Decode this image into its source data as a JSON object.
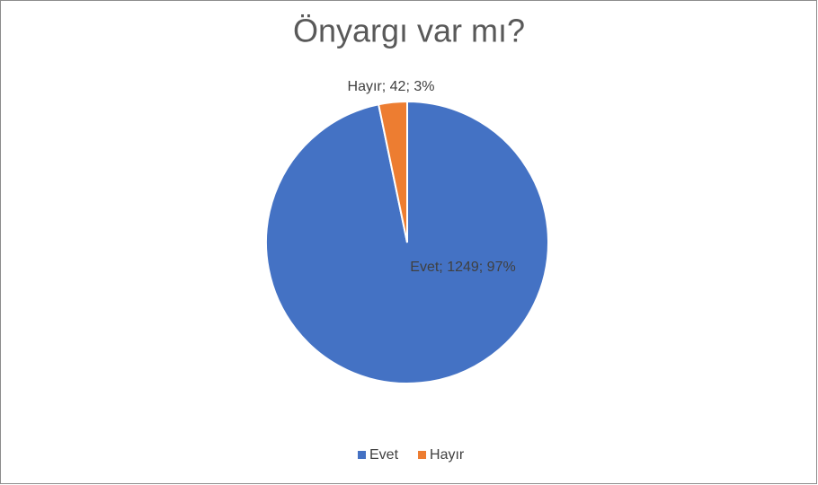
{
  "chart_data": {
    "type": "pie",
    "title": "Önyargı var mı?",
    "categories": [
      "Evet",
      "Hayır"
    ],
    "values": [
      1249,
      42
    ],
    "value_labels": [
      "Evet; 1249; 97%",
      "Hayır; 42; 3%"
    ],
    "colors": [
      "#4472c4",
      "#ed7d31"
    ],
    "legend": "bottom"
  }
}
